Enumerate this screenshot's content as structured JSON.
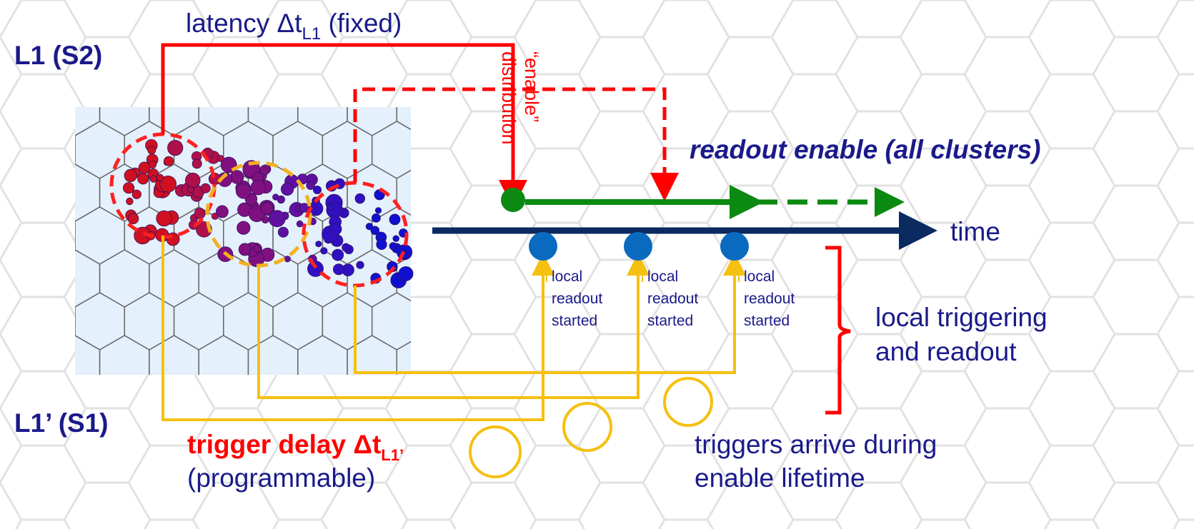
{
  "labels": {
    "l1": "L1 (S2)",
    "l1_prime": "L1’ (S1)",
    "latency": {
      "main": "latency Δt",
      "sub": "L1",
      "tail": " (fixed)"
    },
    "enable_distribution": [
      "“enable”",
      "distribution"
    ],
    "readout_enable": "readout enable (all clusters)",
    "time": "time",
    "local_readout": [
      [
        "local",
        "readout",
        "started"
      ],
      [
        "local",
        "readout",
        "started"
      ],
      [
        "local",
        "readout",
        "started"
      ]
    ],
    "local_triggering": [
      "local triggering",
      "and readout"
    ],
    "trigger_delay": {
      "main": "trigger delay Δt",
      "sub": "L1’",
      "second_line": "(programmable)"
    },
    "triggers_arrive": [
      "triggers arrive during",
      "enable lifetime"
    ]
  }
}
